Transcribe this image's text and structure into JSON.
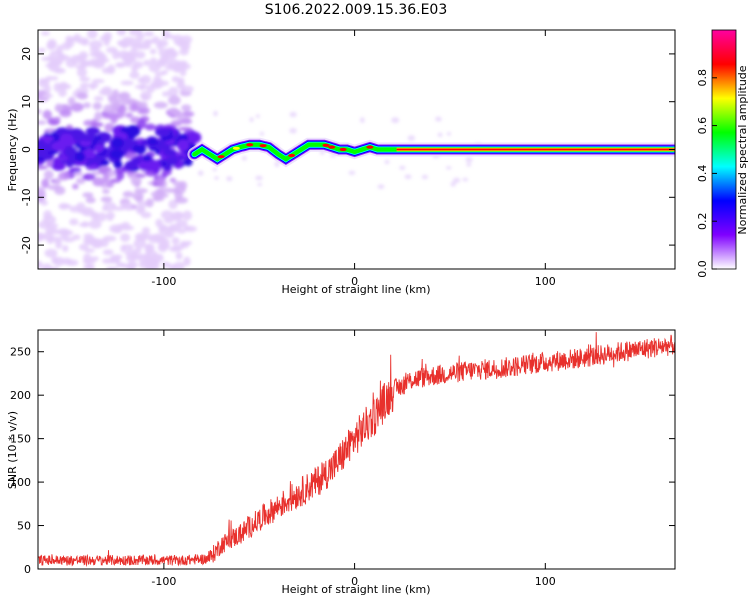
{
  "figure": {
    "title": "S106.2022.009.15.36.E03"
  },
  "chart_data": [
    {
      "type": "heatmap",
      "xlabel": "Height of straight line (km)",
      "ylabel": "Frequency (Hz)",
      "xlim": [
        -166,
        168
      ],
      "ylim": [
        -25,
        25
      ],
      "xticks": [
        -100,
        0,
        100
      ],
      "yticks": [
        -20,
        -10,
        0,
        10,
        20
      ],
      "ridge_x": [
        -166,
        -150,
        -130,
        -110,
        -92,
        -84,
        -80,
        -76,
        -72,
        -68,
        -64,
        -60,
        -55,
        -50,
        -45,
        -40,
        -36,
        -32,
        -28,
        -24,
        -20,
        -16,
        -12,
        -8,
        -4,
        0,
        4,
        8,
        12,
        16,
        20,
        24,
        60,
        100,
        140,
        168
      ],
      "ridge_y": [
        2,
        -1,
        1,
        -2,
        0,
        -1,
        0,
        -1,
        -2,
        -1,
        0,
        0.5,
        1,
        1,
        0.5,
        -1,
        -2,
        -1,
        0,
        1,
        1,
        1,
        0.5,
        0,
        0,
        -0.5,
        0,
        0.5,
        0,
        0,
        0,
        0,
        0,
        0,
        0,
        0
      ],
      "colorbar": {
        "label": "Normalized spectral amplitude",
        "range": [
          0,
          1
        ],
        "ticks": [
          "0.0",
          "0.2",
          "0.4",
          "0.6",
          "0.8"
        ],
        "tick_values": [
          0,
          0.2,
          0.4,
          0.6,
          0.8
        ],
        "colors": [
          "#ffffff",
          "#7f00ff",
          "#0000ff",
          "#00ffff",
          "#00ff00",
          "#ffff00",
          "#ff0000",
          "#ff00a0"
        ]
      }
    },
    {
      "type": "line",
      "xlabel": "Height of straight line (km)",
      "ylabel": "SNR (10 * v/v)",
      "xlim": [
        -166,
        168
      ],
      "ylim": [
        0,
        275
      ],
      "xticks": [
        -100,
        0,
        100
      ],
      "yticks": [
        0,
        50,
        100,
        150,
        200,
        250
      ],
      "color": "#e8302c",
      "x": [
        -166,
        -140,
        -110,
        -90,
        -76,
        -70,
        -60,
        -50,
        -40,
        -30,
        -20,
        -10,
        0,
        10,
        20,
        30,
        40,
        60,
        80,
        100,
        120,
        140,
        168
      ],
      "y": [
        10,
        10,
        10,
        10,
        12,
        28,
        40,
        57,
        72,
        86,
        100,
        120,
        150,
        175,
        205,
        218,
        222,
        228,
        232,
        238,
        243,
        250,
        258
      ]
    }
  ]
}
